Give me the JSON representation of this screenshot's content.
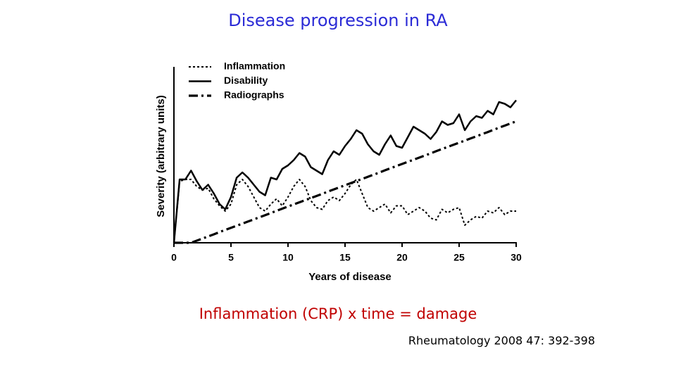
{
  "chart_data": {
    "type": "line",
    "title": "Disease progression in RA",
    "xlabel": "Years of disease",
    "ylabel": "Severity (arbitrary units)",
    "xlim": [
      0,
      30
    ],
    "xticks": [
      0,
      5,
      10,
      15,
      20,
      25,
      30
    ],
    "ylim": [
      0,
      100
    ],
    "legend": "top-left",
    "x": [
      0,
      0.5,
      1,
      1.5,
      2,
      2.5,
      3,
      3.5,
      4,
      4.5,
      5,
      5.5,
      6,
      6.5,
      7,
      7.5,
      8,
      8.5,
      9,
      9.5,
      10,
      10.5,
      11,
      11.5,
      12,
      12.5,
      13,
      13.5,
      14,
      14.5,
      15,
      15.5,
      16,
      16.5,
      17,
      17.5,
      18,
      18.5,
      19,
      19.5,
      20,
      20.5,
      21,
      21.5,
      22,
      22.5,
      23,
      23.5,
      24,
      24.5,
      25,
      25.5,
      26,
      26.5,
      27,
      27.5,
      28,
      28.5,
      29,
      29.5,
      30
    ],
    "series": [
      {
        "name": "Inflammation",
        "color": "#000000",
        "style": "dotted",
        "values": [
          0,
          35,
          36,
          36,
          32,
          30,
          31,
          25,
          21,
          18,
          22,
          33,
          36,
          32,
          26,
          20,
          18,
          22,
          25,
          21,
          26,
          32,
          36,
          32,
          24,
          20,
          19,
          24,
          26,
          24,
          28,
          33,
          36,
          28,
          20,
          18,
          20,
          22,
          17,
          21,
          21,
          16,
          18,
          20,
          18,
          14,
          13,
          19,
          17,
          19,
          20,
          10,
          13,
          15,
          14,
          18,
          17,
          20,
          16,
          18,
          18
        ]
      },
      {
        "name": "Disability",
        "color": "#000000",
        "style": "solid",
        "values": [
          0,
          36,
          36,
          41,
          35,
          30,
          33,
          28,
          22,
          19,
          26,
          37,
          40,
          37,
          33,
          29,
          27,
          37,
          36,
          42,
          44,
          47,
          51,
          49,
          43,
          41,
          39,
          47,
          52,
          50,
          55,
          59,
          64,
          62,
          56,
          52,
          50,
          56,
          61,
          55,
          54,
          60,
          66,
          64,
          62,
          59,
          63,
          69,
          67,
          68,
          73,
          64,
          69,
          72,
          71,
          75,
          73,
          80,
          79,
          77,
          81
        ]
      },
      {
        "name": "Radiographs",
        "color": "#000000",
        "style": "dashdot",
        "values": [
          0,
          0,
          0,
          0,
          1.2,
          2.4,
          3.6,
          4.8,
          6.1,
          7.3,
          8.5,
          9.7,
          10.9,
          12.1,
          13.3,
          14.5,
          15.7,
          16.9,
          18.2,
          19.4,
          20.6,
          21.8,
          23.0,
          24.2,
          25.4,
          26.6,
          27.8,
          29.1,
          30.3,
          31.5,
          32.7,
          33.9,
          35.1,
          36.3,
          37.5,
          38.7,
          39.9,
          41.2,
          42.4,
          43.6,
          44.8,
          46.0,
          47.2,
          48.4,
          49.6,
          50.8,
          52.1,
          53.3,
          54.5,
          55.7,
          56.9,
          58.1,
          59.3,
          60.5,
          61.7,
          62.9,
          64.2,
          65.4,
          66.6,
          67.8,
          69.0
        ]
      }
    ]
  },
  "caption": "Inflammation (CRP) x time = damage",
  "citation": "Rheumatology 2008 47: 392-398"
}
